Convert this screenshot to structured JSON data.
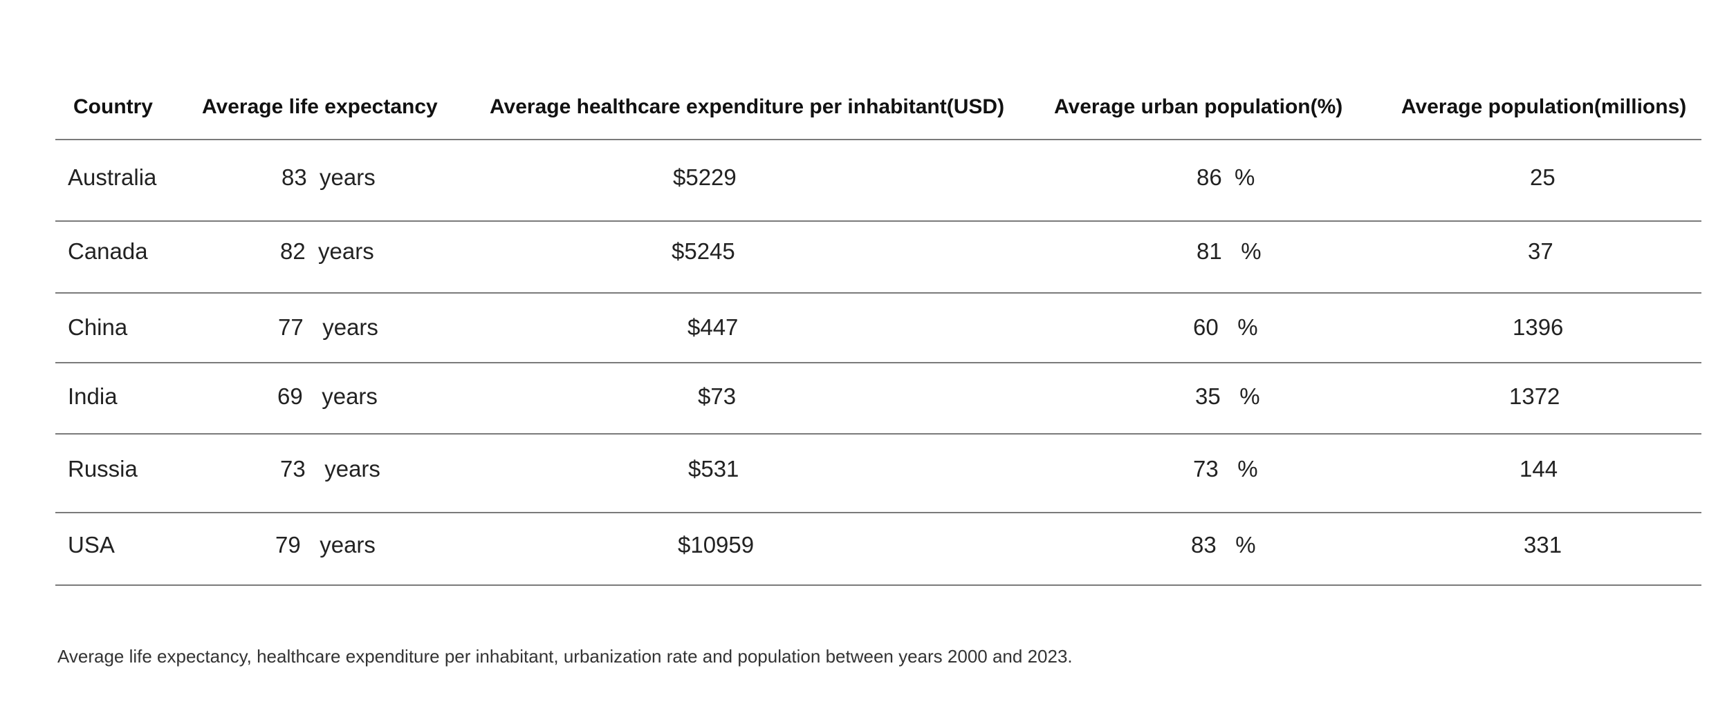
{
  "chart_data": {
    "type": "table",
    "columns": [
      "Country",
      "Average life expectancy",
      "Average healthcare expenditure per inhabitant(USD)",
      "Average urban population(%)",
      "Average population(millions)"
    ],
    "rows": [
      [
        "Australia",
        "83  years",
        "$5229",
        "86  %",
        "25"
      ],
      [
        "Canada",
        "82  years",
        "$5245",
        "81   %",
        "37"
      ],
      [
        "China",
        "77   years",
        "$447",
        "60   %",
        "1396"
      ],
      [
        "India",
        "69   years",
        "$73",
        "35   %",
        "1372"
      ],
      [
        "Russia",
        "73   years",
        "$531",
        "73   %",
        "144"
      ],
      [
        "USA",
        "79   years",
        "$10959",
        "83   %",
        "331"
      ]
    ],
    "caption": "Average life expectancy, healthcare expenditure per inhabitant, urbanization rate and population between years 2000 and 2023."
  },
  "colors": {
    "rule": "#7a7a7a",
    "text": "#222222"
  }
}
